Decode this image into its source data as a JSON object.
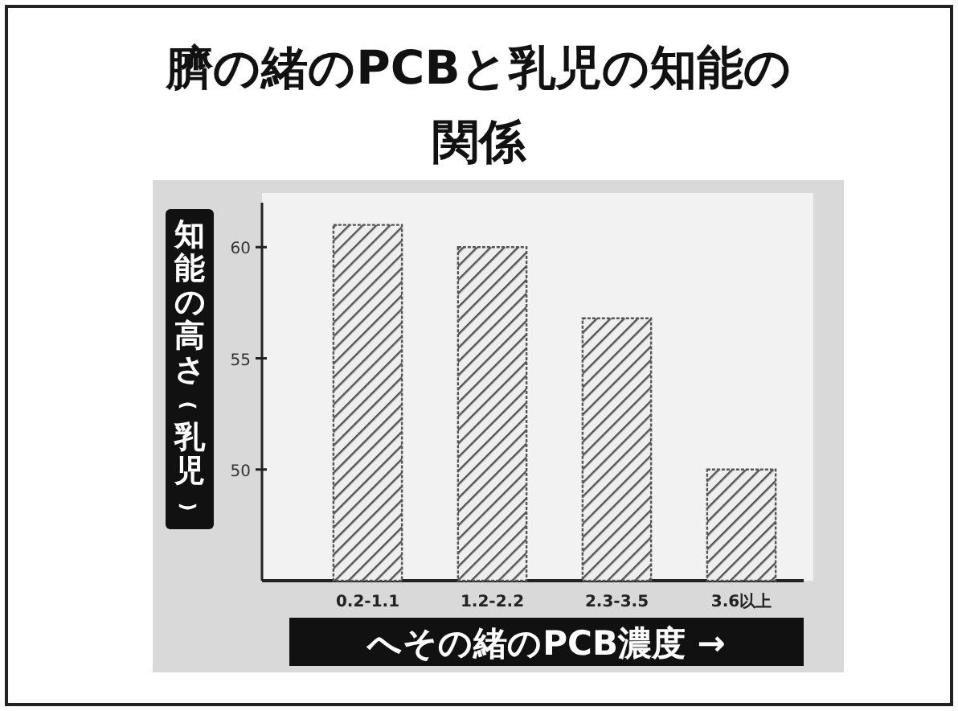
{
  "chart_data": {
    "type": "bar",
    "title": "臍の緒のPCBと乳児の知能の関係",
    "xlabel": "へその緒のPCB濃度 →",
    "ylabel": "知能の高さ(乳児)",
    "categories": [
      "0.2-1.1",
      "1.2-2.2",
      "2.3-3.5",
      "3.6以上"
    ],
    "values": [
      61,
      60,
      56.8,
      50
    ],
    "color": "#555555",
    "ylim": [
      45,
      62
    ],
    "yticks": [
      50,
      55,
      60
    ],
    "grid": false
  }
}
